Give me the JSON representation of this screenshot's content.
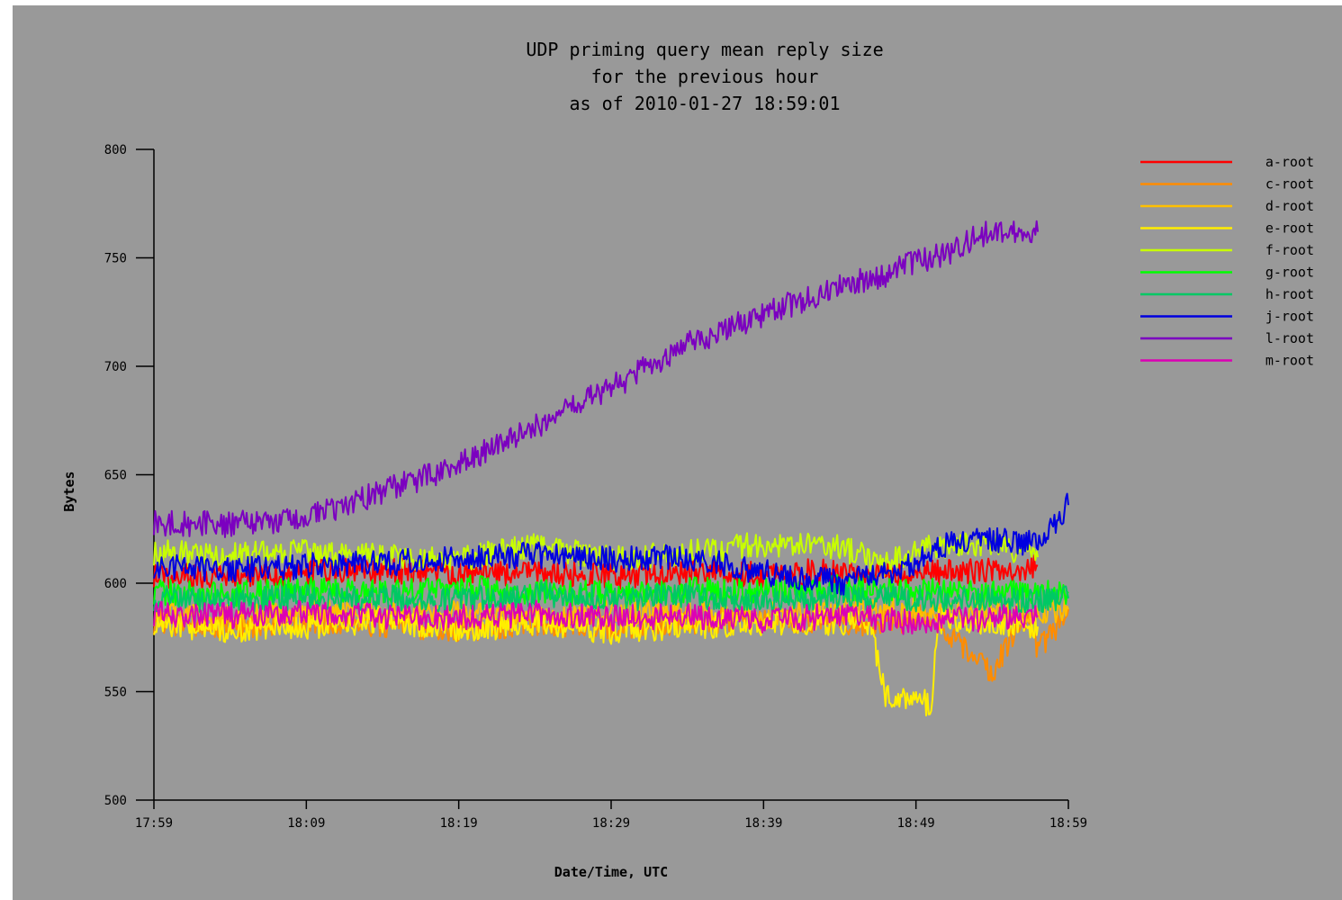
{
  "chart_data": {
    "type": "line",
    "title": [
      "UDP priming query mean reply size",
      "for the previous hour",
      "as of 2010-01-27 18:59:01"
    ],
    "xlabel": "Date/Time, UTC",
    "ylabel": "Bytes",
    "x_tick_labels": [
      "17:59",
      "18:09",
      "18:19",
      "18:29",
      "18:39",
      "18:49",
      "18:59"
    ],
    "y_ticks": [
      500,
      550,
      600,
      650,
      700,
      750,
      800
    ],
    "ylim": [
      500,
      800
    ],
    "xlim_minutes": [
      0,
      60
    ],
    "grid": false,
    "legend_position": "top-right",
    "background": "#999999",
    "series": [
      {
        "name": "a-root",
        "color": "#ff0000",
        "x": [
          0,
          5,
          10,
          15,
          20,
          25,
          30,
          35,
          40,
          45,
          50,
          55,
          58
        ],
        "values": [
          604,
          603,
          605,
          606,
          604,
          605,
          603,
          605,
          604,
          606,
          604,
          606,
          608
        ]
      },
      {
        "name": "c-root",
        "color": "#ff8c00",
        "x": [
          0,
          5,
          10,
          15,
          20,
          25,
          30,
          35,
          40,
          45,
          48,
          51,
          53,
          55,
          57,
          58,
          59,
          60
        ],
        "values": [
          582,
          580,
          583,
          581,
          579,
          581,
          580,
          582,
          584,
          581,
          582,
          585,
          572,
          558,
          585,
          570,
          578,
          588
        ]
      },
      {
        "name": "d-root",
        "color": "#ffc000",
        "x": [
          0,
          5,
          10,
          15,
          20,
          25,
          30,
          35,
          40,
          45,
          50,
          55,
          60
        ],
        "values": [
          586,
          584,
          587,
          585,
          586,
          584,
          587,
          586,
          585,
          588,
          587,
          586,
          588
        ]
      },
      {
        "name": "e-root",
        "color": "#ffee00",
        "x": [
          0,
          5,
          10,
          15,
          20,
          25,
          30,
          35,
          40,
          45,
          47,
          48,
          50,
          51,
          51.5,
          52,
          55,
          58
        ],
        "values": [
          582,
          578,
          580,
          583,
          579,
          581,
          578,
          580,
          582,
          582,
          582,
          548,
          546,
          544,
          582,
          584,
          582,
          580
        ]
      },
      {
        "name": "f-root",
        "color": "#c8ff00",
        "x": [
          0,
          5,
          10,
          15,
          20,
          25,
          30,
          35,
          40,
          45,
          48,
          50,
          55,
          58
        ],
        "values": [
          614,
          613,
          614,
          612,
          611,
          617,
          612,
          614,
          618,
          617,
          608,
          616,
          618,
          612
        ]
      },
      {
        "name": "g-root",
        "color": "#00ff00",
        "x": [
          0,
          5,
          10,
          15,
          20,
          25,
          30,
          35,
          40,
          45,
          50,
          55,
          60
        ],
        "values": [
          596,
          595,
          597,
          596,
          598,
          596,
          595,
          597,
          596,
          598,
          597,
          595,
          596
        ]
      },
      {
        "name": "h-root",
        "color": "#00c864",
        "x": [
          0,
          5,
          10,
          15,
          20,
          25,
          30,
          35,
          40,
          45,
          50,
          55,
          60
        ],
        "values": [
          593,
          592,
          594,
          593,
          592,
          595,
          593,
          594,
          592,
          594,
          593,
          592,
          593
        ]
      },
      {
        "name": "j-root",
        "color": "#0000e0",
        "x": [
          0,
          5,
          10,
          15,
          20,
          25,
          30,
          35,
          40,
          45,
          48,
          50,
          52,
          55,
          58,
          60
        ],
        "values": [
          608,
          606,
          608,
          609,
          612,
          613,
          611,
          612,
          605,
          600,
          605,
          610,
          618,
          620,
          618,
          636
        ]
      },
      {
        "name": "l-root",
        "color": "#7b00c0",
        "x": [
          0,
          5,
          10,
          15,
          20,
          25,
          28,
          30,
          35,
          40,
          45,
          48,
          50,
          52,
          54,
          56,
          58
        ],
        "values": [
          628,
          627,
          630,
          642,
          655,
          672,
          683,
          690,
          710,
          724,
          737,
          742,
          748,
          752,
          760,
          763,
          762
        ]
      },
      {
        "name": "m-root",
        "color": "#dc00b4",
        "x": [
          0,
          5,
          10,
          15,
          20,
          25,
          30,
          35,
          40,
          45,
          50,
          55,
          58
        ],
        "values": [
          586,
          585,
          587,
          585,
          584,
          586,
          584,
          585,
          583,
          585,
          582,
          584,
          585
        ]
      }
    ]
  }
}
